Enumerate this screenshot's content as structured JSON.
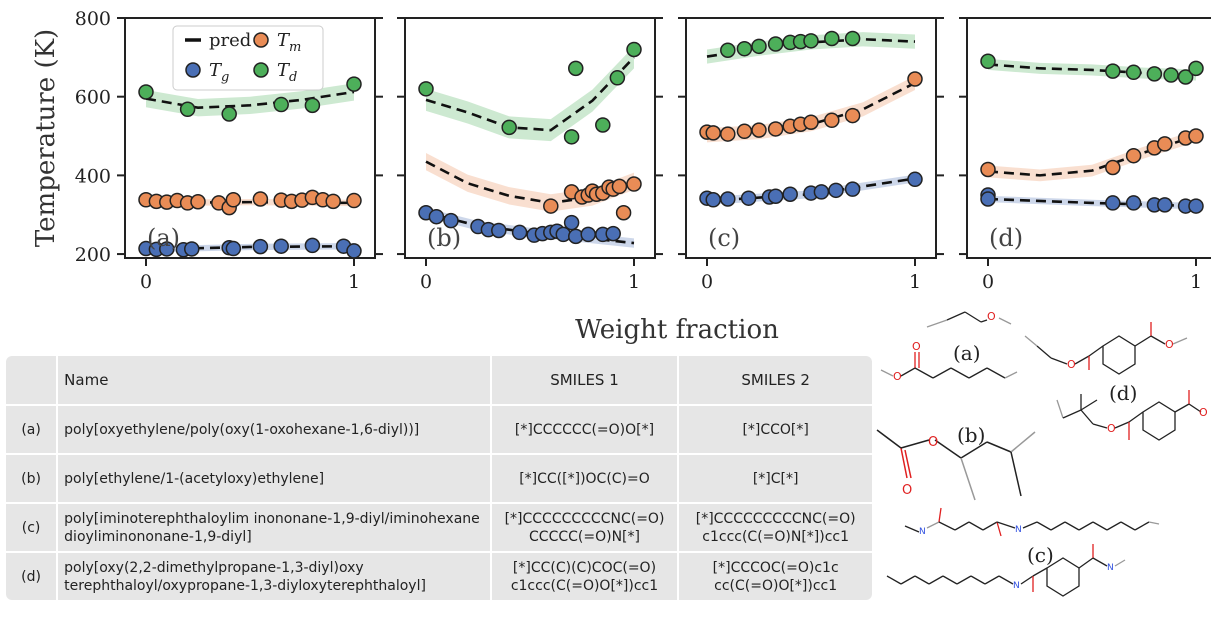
{
  "chart_data": [
    {
      "type": "scatter",
      "panel_label": "(a)",
      "ylabel": "Temperature (K)",
      "xlim": [
        0,
        1
      ],
      "ylim": [
        190,
        800
      ],
      "xticks": [
        "0",
        "1"
      ],
      "yticks": [
        "200",
        "400",
        "600",
        "800"
      ],
      "series": [
        {
          "name": "T_d",
          "color": "#4daf5a",
          "x": [
            0.0,
            0.2,
            0.4,
            0.65,
            0.8,
            1.0
          ],
          "y": [
            612,
            568,
            556,
            580,
            578,
            632
          ]
        },
        {
          "name": "T_m",
          "color": "#e98c56",
          "x": [
            0.0,
            0.05,
            0.1,
            0.15,
            0.2,
            0.25,
            0.35,
            0.4,
            0.42,
            0.55,
            0.65,
            0.7,
            0.75,
            0.8,
            0.85,
            0.9,
            1.0
          ],
          "y": [
            338,
            334,
            332,
            336,
            330,
            333,
            330,
            318,
            338,
            340,
            337,
            334,
            337,
            344,
            338,
            334,
            336
          ]
        },
        {
          "name": "T_g",
          "color": "#4a6fb5",
          "x": [
            0.0,
            0.05,
            0.1,
            0.18,
            0.22,
            0.4,
            0.42,
            0.55,
            0.65,
            0.8,
            0.95,
            1.0
          ],
          "y": [
            214,
            212,
            213,
            211,
            213,
            216,
            214,
            219,
            220,
            222,
            220,
            208
          ]
        }
      ],
      "pred": [
        {
          "for": "T_d",
          "x": [
            0,
            0.25,
            0.5,
            0.75,
            1.0
          ],
          "y": [
            595,
            572,
            578,
            592,
            612
          ],
          "band": 22
        },
        {
          "for": "T_m",
          "x": [
            0,
            0.5,
            1.0
          ],
          "y": [
            330,
            332,
            330
          ],
          "band": 8
        },
        {
          "for": "T_g",
          "x": [
            0,
            0.5,
            1.0
          ],
          "y": [
            212,
            218,
            220
          ],
          "band": 8
        }
      ]
    },
    {
      "type": "scatter",
      "panel_label": "(b)",
      "xlim": [
        0,
        1
      ],
      "ylim": [
        190,
        800
      ],
      "xticks": [
        "0",
        "1"
      ],
      "series": [
        {
          "name": "T_d",
          "color": "#4daf5a",
          "x": [
            0.0,
            0.4,
            0.7,
            0.72,
            0.85,
            0.92,
            1.0
          ],
          "y": [
            620,
            522,
            498,
            672,
            528,
            648,
            720
          ]
        },
        {
          "name": "T_m",
          "color": "#e98c56",
          "x": [
            0.6,
            0.7,
            0.75,
            0.78,
            0.8,
            0.82,
            0.85,
            0.88,
            0.9,
            0.93,
            0.95,
            1.0
          ],
          "y": [
            322,
            358,
            345,
            350,
            360,
            352,
            355,
            370,
            365,
            372,
            305,
            378
          ]
        },
        {
          "name": "T_g",
          "color": "#4a6fb5",
          "x": [
            0.0,
            0.05,
            0.12,
            0.25,
            0.3,
            0.35,
            0.45,
            0.52,
            0.56,
            0.6,
            0.63,
            0.66,
            0.7,
            0.72,
            0.78,
            0.85,
            0.9
          ],
          "y": [
            305,
            295,
            285,
            270,
            262,
            260,
            255,
            248,
            252,
            255,
            258,
            250,
            280,
            245,
            250,
            250,
            252
          ]
        }
      ],
      "pred": [
        {
          "for": "T_d",
          "x": [
            0,
            0.2,
            0.4,
            0.6,
            0.8,
            1.0
          ],
          "y": [
            592,
            560,
            522,
            515,
            590,
            700
          ],
          "band": 28
        },
        {
          "for": "T_m",
          "x": [
            0,
            0.2,
            0.4,
            0.6,
            0.8,
            1.0
          ],
          "y": [
            435,
            380,
            348,
            330,
            345,
            385
          ],
          "band": 22
        },
        {
          "for": "T_g",
          "x": [
            0,
            0.25,
            0.5,
            0.75,
            1.0
          ],
          "y": [
            305,
            272,
            255,
            242,
            228
          ],
          "band": 12
        }
      ]
    },
    {
      "type": "scatter",
      "panel_label": "(c)",
      "xlim": [
        0,
        1
      ],
      "ylim": [
        190,
        800
      ],
      "xticks": [
        "0",
        "1"
      ],
      "series": [
        {
          "name": "T_d",
          "color": "#4daf5a",
          "x": [
            0.1,
            0.18,
            0.25,
            0.33,
            0.4,
            0.45,
            0.5,
            0.6,
            0.7
          ],
          "y": [
            718,
            722,
            728,
            734,
            738,
            740,
            742,
            748,
            748
          ]
        },
        {
          "name": "T_m",
          "color": "#e98c56",
          "x": [
            0.0,
            0.03,
            0.1,
            0.18,
            0.25,
            0.33,
            0.4,
            0.45,
            0.5,
            0.6,
            0.7,
            1.0
          ],
          "y": [
            510,
            508,
            505,
            512,
            515,
            518,
            525,
            530,
            535,
            540,
            552,
            645
          ]
        },
        {
          "name": "T_g",
          "color": "#4a6fb5",
          "x": [
            0.0,
            0.03,
            0.1,
            0.2,
            0.3,
            0.33,
            0.4,
            0.5,
            0.55,
            0.62,
            0.7,
            1.0
          ],
          "y": [
            342,
            338,
            340,
            342,
            345,
            347,
            352,
            355,
            358,
            362,
            365,
            390
          ]
        }
      ],
      "pred": [
        {
          "for": "T_d",
          "x": [
            0,
            0.25,
            0.5,
            0.75,
            1.0
          ],
          "y": [
            702,
            722,
            738,
            746,
            740
          ],
          "band": 18
        },
        {
          "for": "T_m",
          "x": [
            0,
            0.25,
            0.5,
            0.75,
            1.0
          ],
          "y": [
            502,
            510,
            530,
            568,
            635
          ],
          "band": 18
        },
        {
          "for": "T_g",
          "x": [
            0,
            0.5,
            1.0
          ],
          "y": [
            335,
            352,
            392
          ],
          "band": 10
        }
      ]
    },
    {
      "type": "scatter",
      "panel_label": "(d)",
      "xlim": [
        0,
        1
      ],
      "ylim": [
        190,
        800
      ],
      "xticks": [
        "0",
        "1"
      ],
      "series": [
        {
          "name": "T_d",
          "color": "#4daf5a",
          "x": [
            0.0,
            0.6,
            0.7,
            0.8,
            0.88,
            0.95,
            1.0
          ],
          "y": [
            690,
            665,
            662,
            658,
            655,
            650,
            672
          ]
        },
        {
          "name": "T_m",
          "color": "#e98c56",
          "x": [
            0.0,
            0.6,
            0.7,
            0.8,
            0.85,
            0.95,
            1.0
          ],
          "y": [
            415,
            420,
            450,
            470,
            480,
            495,
            500
          ]
        },
        {
          "name": "T_g",
          "color": "#4a6fb5",
          "x": [
            0.0,
            0.0,
            0.6,
            0.7,
            0.8,
            0.85,
            0.95,
            1.0
          ],
          "y": [
            350,
            340,
            330,
            330,
            325,
            325,
            322,
            322
          ]
        }
      ],
      "pred": [
        {
          "for": "T_d",
          "x": [
            0,
            0.25,
            0.5,
            0.75,
            1.0
          ],
          "y": [
            682,
            672,
            668,
            660,
            655
          ],
          "band": 14
        },
        {
          "for": "T_m",
          "x": [
            0,
            0.25,
            0.5,
            0.75,
            1.0
          ],
          "y": [
            410,
            400,
            412,
            458,
            500
          ],
          "band": 15
        },
        {
          "for": "T_g",
          "x": [
            0,
            0.5,
            1.0
          ],
          "y": [
            340,
            330,
            322
          ],
          "band": 8
        }
      ]
    }
  ],
  "figure": {
    "xlabel": "Weight fraction",
    "ylabel": "Temperature (K)",
    "legend": [
      {
        "key": "pred",
        "label": "pred"
      },
      {
        "key": "T_m",
        "label_base": "T",
        "label_sub": "m",
        "color": "#e98c56"
      },
      {
        "key": "T_g",
        "label_base": "T",
        "label_sub": "g",
        "color": "#4a6fb5"
      },
      {
        "key": "T_d",
        "label_base": "T",
        "label_sub": "d",
        "color": "#4daf5a"
      }
    ]
  },
  "table": {
    "headers": [
      "",
      "Name",
      "SMILES 1",
      "SMILES 2"
    ],
    "rows": [
      {
        "id": "(a)",
        "name": "poly[oxyethylene/poly(oxy(1-oxohexane-1,6-diyl))]",
        "smiles1": "[*]CCCCCC(=O)O[*]",
        "smiles2": "[*]CCO[*]"
      },
      {
        "id": "(b)",
        "name": "poly[ethylene/1-(acetyloxy)ethylene]",
        "smiles1": "[*]CC([*])OC(C)=O",
        "smiles2": "[*]C[*]"
      },
      {
        "id": "(c)",
        "name": "poly[iminoterephthaloylim inononane-1,9-diyl/iminohexane dioyliminononane-1,9-diyl]",
        "smiles1": "[*]CCCCCCCCCNC(=O) CCCCC(=O)N[*]",
        "smiles2": "[*]CCCCCCCCCNC(=O) c1ccc(C(=O)N[*])cc1"
      },
      {
        "id": "(d)",
        "name": "poly[oxy(2,2-dimethylpropane-1,3-diyl)oxy terephthaloyl/oxypropane-1,3-diyloxyterephthaloyl]",
        "smiles1": "[*]CC(C)(C)COC(=O) c1ccc(C(=O)O[*])cc1",
        "smiles2": "[*]CCCOC(=O)c1c cc(C(=O)O[*])cc1"
      }
    ]
  },
  "molecules": {
    "labels": [
      "(a)",
      "(d)",
      "(b)",
      "(c)"
    ],
    "atom_O": "O",
    "atom_N": "N",
    "colors": {
      "bond": "#222222",
      "oxygen": "#e02020",
      "nitrogen": "#3050e0",
      "star": "#999999"
    }
  }
}
